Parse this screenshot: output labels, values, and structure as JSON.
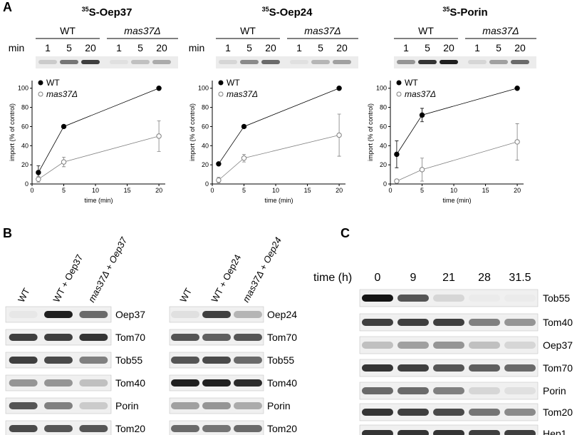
{
  "panel_labels": {
    "a": "A",
    "b": "B",
    "c": "C"
  },
  "chart_data": [
    {
      "type": "line",
      "title_superscript": "35",
      "title": "S-Oep37",
      "blot": {
        "lane_axis_label": "min",
        "groups": [
          "WT",
          "mas37Δ"
        ],
        "lanes": [
          "1",
          "5",
          "20",
          "1",
          "5",
          "20"
        ]
      },
      "xlabel": "time (min)",
      "ylabel": "import (% of control)",
      "x": [
        1,
        5,
        20
      ],
      "xlim": [
        0,
        21
      ],
      "xticks": [
        0,
        5,
        10,
        15,
        20
      ],
      "ylim": [
        0,
        108
      ],
      "yticks": [
        0,
        20,
        40,
        60,
        80,
        100
      ],
      "legend": "upper left",
      "series": [
        {
          "name": "WT",
          "color": "#000000",
          "marker_fill": "#000000",
          "values": [
            12,
            60,
            100
          ],
          "errors": [
            7,
            0,
            0
          ]
        },
        {
          "name": "mas37Δ",
          "color": "#808080",
          "marker_fill": "#ffffff",
          "values": [
            5,
            23,
            50
          ],
          "errors": [
            3,
            5,
            16
          ]
        }
      ]
    },
    {
      "type": "line",
      "title_superscript": "35",
      "title": "S-Oep24",
      "blot": {
        "lane_axis_label": "min",
        "groups": [
          "WT",
          "mas37Δ"
        ],
        "lanes": [
          "1",
          "5",
          "20",
          "1",
          "5",
          "20"
        ]
      },
      "xlabel": "time (min)",
      "ylabel": "import (% of control)",
      "x": [
        1,
        5,
        20
      ],
      "xlim": [
        0,
        21
      ],
      "xticks": [
        0,
        5,
        10,
        15,
        20
      ],
      "ylim": [
        0,
        108
      ],
      "yticks": [
        0,
        20,
        40,
        60,
        80,
        100
      ],
      "legend": "upper left",
      "series": [
        {
          "name": "WT",
          "color": "#000000",
          "marker_fill": "#000000",
          "values": [
            21,
            60,
            100
          ],
          "errors": [
            0,
            0,
            0
          ]
        },
        {
          "name": "mas37Δ",
          "color": "#808080",
          "marker_fill": "#ffffff",
          "values": [
            4,
            27,
            51
          ],
          "errors": [
            3,
            4,
            22
          ]
        }
      ]
    },
    {
      "type": "line",
      "title_superscript": "35",
      "title": "S-Porin",
      "blot": {
        "groups": [
          "WT",
          "mas37Δ"
        ],
        "lanes": [
          "1",
          "5",
          "20",
          "1",
          "5",
          "20"
        ]
      },
      "xlabel": "time (min)",
      "ylabel": "import (% of control)",
      "x": [
        1,
        5,
        20
      ],
      "xlim": [
        0,
        21
      ],
      "xticks": [
        0,
        5,
        10,
        15,
        20
      ],
      "ylim": [
        0,
        108
      ],
      "yticks": [
        0,
        20,
        40,
        60,
        80,
        100
      ],
      "legend": "upper left",
      "series": [
        {
          "name": "WT",
          "color": "#000000",
          "marker_fill": "#000000",
          "values": [
            31,
            72,
            100
          ],
          "errors": [
            14,
            7,
            0
          ]
        },
        {
          "name": "mas37Δ",
          "color": "#808080",
          "marker_fill": "#ffffff",
          "values": [
            3,
            15,
            44
          ],
          "errors": [
            2,
            12,
            19
          ]
        }
      ]
    }
  ],
  "panel_b": {
    "blots": [
      {
        "lanes": [
          "WT",
          "WT + Oep37",
          "mas37Δ + Oep37"
        ],
        "rows": [
          "Oep37",
          "Tom70",
          "Tob55",
          "Tom40",
          "Porin",
          "Tom20"
        ]
      },
      {
        "lanes": [
          "WT",
          "WT + Oep24",
          "mas37Δ + Oep24"
        ],
        "rows": [
          "Oep24",
          "Tom70",
          "Tob55",
          "Tom40",
          "Porin",
          "Tom20"
        ]
      }
    ]
  },
  "panel_c": {
    "lane_axis_label": "time (h)",
    "lanes": [
      "0",
      "9",
      "21",
      "28",
      "31.5"
    ],
    "rows": [
      "Tob55",
      "Tom40",
      "Oep37",
      "Tom70",
      "Porin",
      "Tom20",
      "Hep1"
    ]
  }
}
